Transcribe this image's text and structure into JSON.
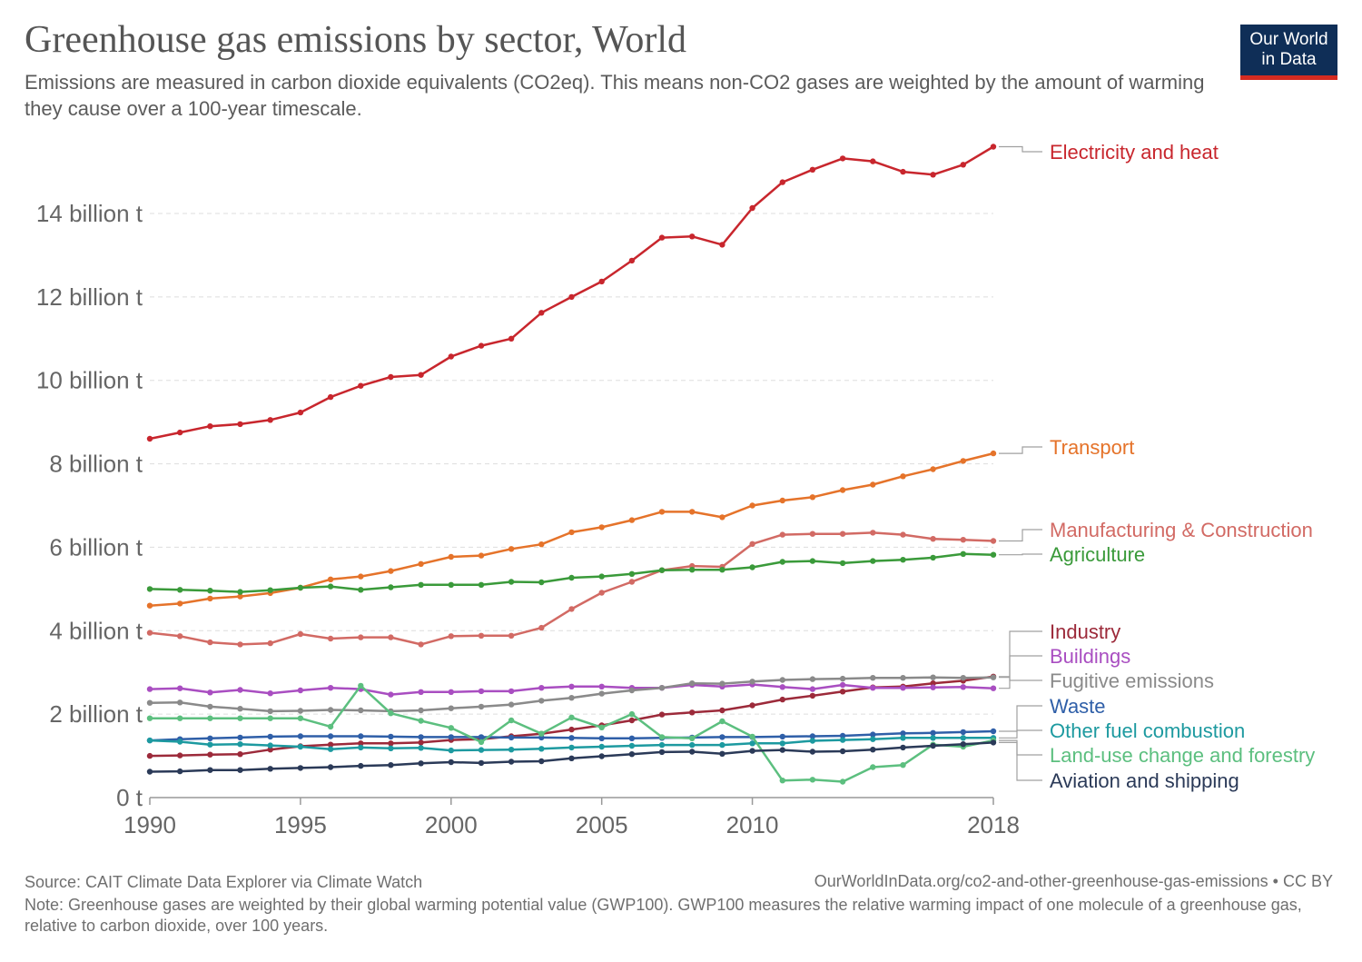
{
  "header": {
    "title": "Greenhouse gas emissions by sector, World",
    "subtitle": "Emissions are measured in carbon dioxide equivalents (CO2eq). This means non-CO2 gases are weighted by the amount of warming they cause over a 100-year timescale."
  },
  "logo": {
    "line1": "Our World",
    "line2": "in Data",
    "colors": {
      "background": "#0f2e57",
      "accent": "#d42b21"
    }
  },
  "footer": {
    "source": "Source: CAIT Climate Data Explorer via Climate Watch",
    "url": "OurWorldInData.org/co2-and-other-greenhouse-gas-emissions • CC BY",
    "note": "Note: Greenhouse gases are weighted by their global warming potential value (GWP100). GWP100 measures the relative warming impact of one molecule of a greenhouse gas, relative to carbon dioxide, over 100 years."
  },
  "chart_data": {
    "type": "line",
    "title": "Greenhouse gas emissions by sector, World",
    "xlabel": "",
    "ylabel": "",
    "xlim": [
      1990,
      2018
    ],
    "ylim": [
      0,
      16
    ],
    "grid": "horizontal dashed",
    "legend": "right (labels at line ends)",
    "x_ticks": [
      1990,
      1995,
      2000,
      2005,
      2010,
      2018
    ],
    "x_tick_labels": [
      "1990",
      "1995",
      "2000",
      "2005",
      "2010",
      "2018"
    ],
    "y_ticks": [
      0,
      2,
      4,
      6,
      8,
      10,
      12,
      14
    ],
    "y_tick_labels": [
      "0 t",
      "2 billion t",
      "4 billion t",
      "6 billion t",
      "8 billion t",
      "10 billion t",
      "12 billion t",
      "14 billion t"
    ],
    "x": [
      1990,
      1991,
      1992,
      1993,
      1994,
      1995,
      1996,
      1997,
      1998,
      1999,
      2000,
      2001,
      2002,
      2003,
      2004,
      2005,
      2006,
      2007,
      2008,
      2009,
      2010,
      2011,
      2012,
      2013,
      2014,
      2015,
      2016,
      2017,
      2018
    ],
    "series": [
      {
        "name": "Electricity and heat",
        "color": "#c8262d",
        "values": [
          8.6,
          8.75,
          8.9,
          8.95,
          9.05,
          9.23,
          9.6,
          9.87,
          10.08,
          10.13,
          10.57,
          10.83,
          11.0,
          11.62,
          12.0,
          12.37,
          12.87,
          13.42,
          13.45,
          13.25,
          14.13,
          14.75,
          15.05,
          15.32,
          15.25,
          15.0,
          14.93,
          15.17,
          15.6
        ]
      },
      {
        "name": "Transport",
        "color": "#e5732a",
        "values": [
          4.6,
          4.65,
          4.77,
          4.82,
          4.9,
          5.03,
          5.23,
          5.3,
          5.43,
          5.6,
          5.77,
          5.8,
          5.96,
          6.07,
          6.36,
          6.48,
          6.65,
          6.85,
          6.85,
          6.72,
          7.0,
          7.12,
          7.2,
          7.37,
          7.5,
          7.7,
          7.87,
          8.07,
          8.25
        ]
      },
      {
        "name": "Manufacturing & Construction",
        "color": "#d26a64",
        "values": [
          3.95,
          3.87,
          3.72,
          3.67,
          3.7,
          3.92,
          3.81,
          3.84,
          3.84,
          3.67,
          3.87,
          3.88,
          3.88,
          4.07,
          4.52,
          4.91,
          5.17,
          5.45,
          5.55,
          5.53,
          6.08,
          6.3,
          6.32,
          6.32,
          6.35,
          6.3,
          6.2,
          6.18,
          6.15
        ]
      },
      {
        "name": "Agriculture",
        "color": "#3a9a3a",
        "values": [
          5.0,
          4.98,
          4.96,
          4.93,
          4.97,
          5.03,
          5.06,
          4.98,
          5.04,
          5.1,
          5.1,
          5.1,
          5.17,
          5.16,
          5.27,
          5.3,
          5.36,
          5.45,
          5.46,
          5.46,
          5.52,
          5.65,
          5.67,
          5.62,
          5.67,
          5.7,
          5.75,
          5.84,
          5.82
        ]
      },
      {
        "name": "Industry",
        "color": "#9c2a3a",
        "values": [
          1.0,
          1.01,
          1.03,
          1.04,
          1.15,
          1.23,
          1.27,
          1.3,
          1.3,
          1.32,
          1.38,
          1.4,
          1.47,
          1.53,
          1.63,
          1.73,
          1.85,
          1.99,
          2.04,
          2.09,
          2.21,
          2.35,
          2.44,
          2.54,
          2.64,
          2.66,
          2.74,
          2.8,
          2.9
        ]
      },
      {
        "name": "Buildings",
        "color": "#a94ec1",
        "values": [
          2.6,
          2.62,
          2.52,
          2.58,
          2.5,
          2.57,
          2.63,
          2.6,
          2.47,
          2.53,
          2.53,
          2.55,
          2.55,
          2.63,
          2.66,
          2.66,
          2.63,
          2.63,
          2.7,
          2.66,
          2.71,
          2.65,
          2.6,
          2.7,
          2.63,
          2.63,
          2.64,
          2.65,
          2.62
        ]
      },
      {
        "name": "Fugitive emissions",
        "color": "#8a8a8a",
        "values": [
          2.27,
          2.28,
          2.18,
          2.13,
          2.07,
          2.08,
          2.1,
          2.09,
          2.07,
          2.09,
          2.14,
          2.18,
          2.23,
          2.32,
          2.39,
          2.49,
          2.57,
          2.63,
          2.74,
          2.73,
          2.78,
          2.82,
          2.84,
          2.85,
          2.87,
          2.87,
          2.88,
          2.87,
          2.88
        ]
      },
      {
        "name": "Waste",
        "color": "#2f5fa8",
        "values": [
          1.37,
          1.4,
          1.42,
          1.44,
          1.46,
          1.47,
          1.47,
          1.47,
          1.46,
          1.45,
          1.45,
          1.45,
          1.44,
          1.44,
          1.43,
          1.42,
          1.42,
          1.43,
          1.44,
          1.45,
          1.45,
          1.46,
          1.47,
          1.48,
          1.51,
          1.54,
          1.55,
          1.57,
          1.59
        ]
      },
      {
        "name": "Other fuel combustion",
        "color": "#1d9aa0",
        "values": [
          1.37,
          1.34,
          1.27,
          1.28,
          1.25,
          1.22,
          1.16,
          1.2,
          1.18,
          1.19,
          1.13,
          1.14,
          1.15,
          1.17,
          1.2,
          1.22,
          1.24,
          1.26,
          1.26,
          1.26,
          1.3,
          1.3,
          1.36,
          1.38,
          1.4,
          1.43,
          1.43,
          1.43,
          1.43
        ]
      },
      {
        "name": "Land-use change and forestry",
        "color": "#5cbf7f",
        "values": [
          1.9,
          1.9,
          1.9,
          1.9,
          1.9,
          1.9,
          1.7,
          2.68,
          2.02,
          1.84,
          1.67,
          1.33,
          1.85,
          1.53,
          1.92,
          1.68,
          2.0,
          1.45,
          1.42,
          1.83,
          1.46,
          0.41,
          0.43,
          0.38,
          0.73,
          0.78,
          1.27,
          1.22,
          1.37
        ]
      },
      {
        "name": "Aviation and shipping",
        "color": "#2b3a58",
        "values": [
          0.62,
          0.63,
          0.66,
          0.66,
          0.69,
          0.71,
          0.73,
          0.76,
          0.78,
          0.82,
          0.85,
          0.83,
          0.86,
          0.87,
          0.94,
          0.99,
          1.04,
          1.09,
          1.1,
          1.05,
          1.12,
          1.14,
          1.1,
          1.11,
          1.15,
          1.2,
          1.24,
          1.28,
          1.32
        ]
      }
    ]
  }
}
